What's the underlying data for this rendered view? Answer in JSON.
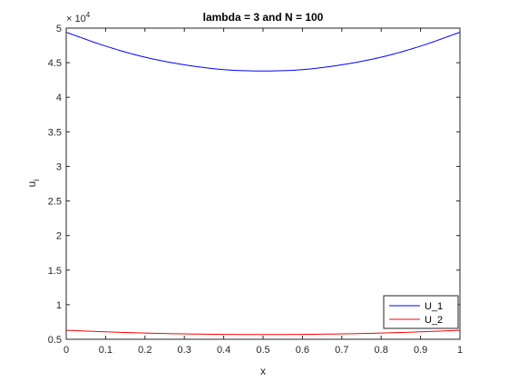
{
  "chart_data": {
    "type": "line",
    "title": "lambda = 3 and N = 100",
    "xlabel": "x",
    "ylabel": "u",
    "ylabel_subscript": "i",
    "xlim": [
      0,
      1
    ],
    "ylim": [
      5000,
      50000
    ],
    "x_ticks": [
      0,
      0.1,
      0.2,
      0.3,
      0.4,
      0.5,
      0.6,
      0.7,
      0.8,
      0.9,
      1
    ],
    "x_tick_labels": [
      "0",
      "0.1",
      "0.2",
      "0.3",
      "0.4",
      "0.5",
      "0.6",
      "0.7",
      "0.8",
      "0.9",
      "1"
    ],
    "y_ticks": [
      5000,
      10000,
      15000,
      20000,
      25000,
      30000,
      35000,
      40000,
      45000,
      50000
    ],
    "y_tick_labels": [
      "0.5",
      "1",
      "1.5",
      "2",
      "2.5",
      "3",
      "3.5",
      "4",
      "4.5",
      "5"
    ],
    "y_exponent_base": "× 10",
    "y_exponent_power": "4",
    "grid": false,
    "legend_position": "bottom-right",
    "x": [
      0,
      0.1,
      0.2,
      0.3,
      0.4,
      0.5,
      0.6,
      0.7,
      0.8,
      0.9,
      1
    ],
    "series": [
      {
        "name": "U_1",
        "color": "#0000ff",
        "values": [
          49400,
          47400,
          45800,
          44700,
          44000,
          43800,
          44000,
          44700,
          45800,
          47400,
          49400
        ]
      },
      {
        "name": "U_2",
        "color": "#ff0000",
        "values": [
          6300,
          6080,
          5900,
          5780,
          5710,
          5690,
          5710,
          5780,
          5900,
          6080,
          6300
        ]
      }
    ]
  }
}
